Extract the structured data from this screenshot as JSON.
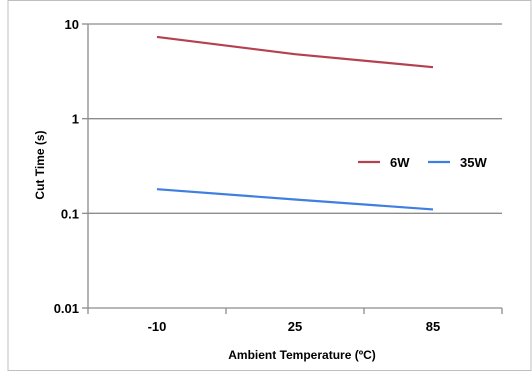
{
  "chart_data": {
    "type": "line",
    "categories": [
      "-10",
      "25",
      "85"
    ],
    "series": [
      {
        "name": "6W",
        "color": "#b5404f",
        "values": [
          7.3,
          4.8,
          3.5
        ]
      },
      {
        "name": "35W",
        "color": "#3f7fe0",
        "values": [
          0.18,
          0.14,
          0.11
        ]
      }
    ],
    "xlabel": "Ambient Temperature (ºC)",
    "ylabel": "Cut Time (s)",
    "yscale": "log",
    "ylim": [
      0.01,
      10
    ],
    "yticks": [
      {
        "value": 10,
        "label": "10"
      },
      {
        "value": 1,
        "label": "1"
      },
      {
        "value": 0.1,
        "label": "0.1"
      },
      {
        "value": 0.01,
        "label": "0.01"
      }
    ],
    "grid": true,
    "legend_position": "right-middle"
  }
}
